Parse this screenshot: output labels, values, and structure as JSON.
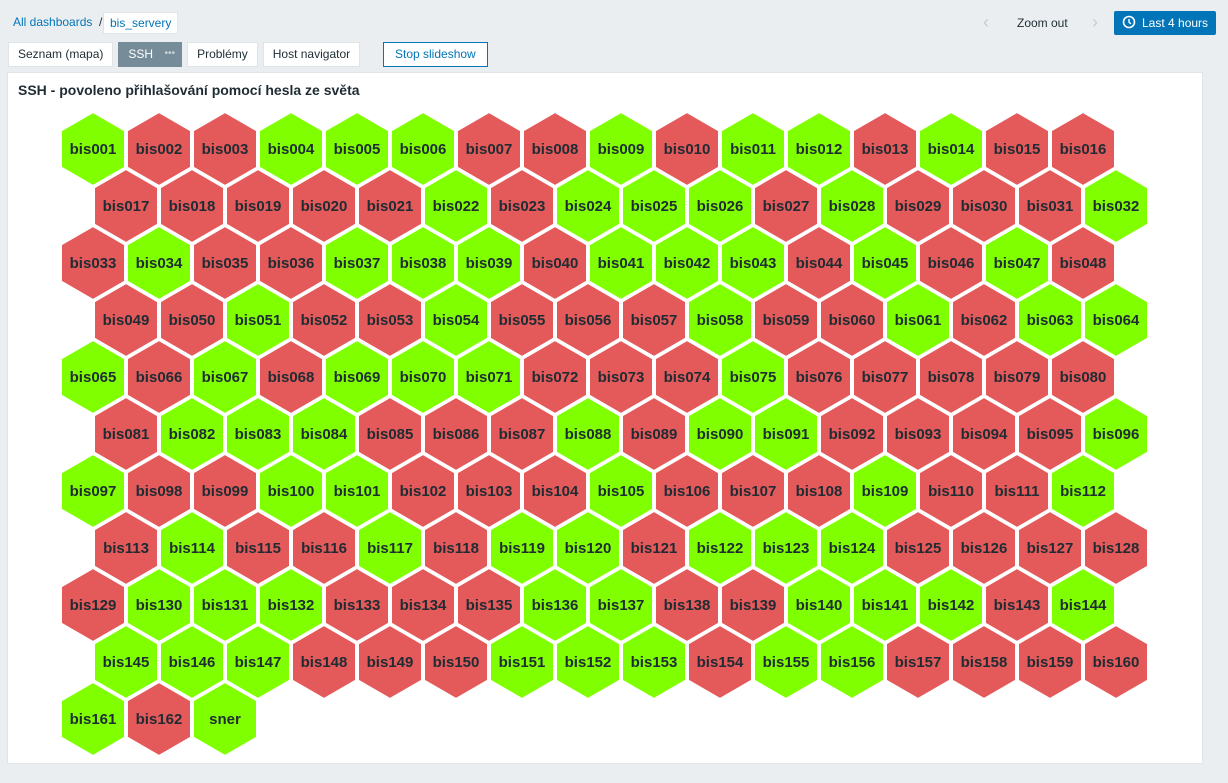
{
  "header": {
    "breadcrumb": [
      "All dashboards",
      "bis_servery"
    ],
    "separator": "/",
    "tabs": [
      "Seznam (mapa)",
      "SSH",
      "Problémy",
      "Host navigator"
    ],
    "stop_button": "Stop slideshow",
    "zoom": "Zoom out",
    "time": "Last 4 hours"
  },
  "widget": {
    "title": "SSH - povoleno přihlašování pomocí hesla ze světa",
    "hosts": [
      {
        "name": "bis001",
        "color": "#80ff00"
      },
      {
        "name": "bis002",
        "color": "#e45959"
      },
      {
        "name": "bis003",
        "color": "#e45959"
      },
      {
        "name": "bis004",
        "color": "#80ff00"
      },
      {
        "name": "bis005",
        "color": "#80ff00"
      },
      {
        "name": "bis006",
        "color": "#80ff00"
      },
      {
        "name": "bis007",
        "color": "#e45959"
      },
      {
        "name": "bis008",
        "color": "#e45959"
      },
      {
        "name": "bis009",
        "color": "#80ff00"
      },
      {
        "name": "bis010",
        "color": "#e45959"
      },
      {
        "name": "bis011",
        "color": "#80ff00"
      },
      {
        "name": "bis012",
        "color": "#80ff00"
      },
      {
        "name": "bis013",
        "color": "#e45959"
      },
      {
        "name": "bis014",
        "color": "#80ff00"
      },
      {
        "name": "bis015",
        "color": "#e45959"
      },
      {
        "name": "bis016",
        "color": "#e45959"
      },
      {
        "name": "bis017",
        "color": "#e45959"
      },
      {
        "name": "bis018",
        "color": "#e45959"
      },
      {
        "name": "bis019",
        "color": "#e45959"
      },
      {
        "name": "bis020",
        "color": "#e45959"
      },
      {
        "name": "bis021",
        "color": "#e45959"
      },
      {
        "name": "bis022",
        "color": "#80ff00"
      },
      {
        "name": "bis023",
        "color": "#e45959"
      },
      {
        "name": "bis024",
        "color": "#80ff00"
      },
      {
        "name": "bis025",
        "color": "#80ff00"
      },
      {
        "name": "bis026",
        "color": "#80ff00"
      },
      {
        "name": "bis027",
        "color": "#e45959"
      },
      {
        "name": "bis028",
        "color": "#80ff00"
      },
      {
        "name": "bis029",
        "color": "#e45959"
      },
      {
        "name": "bis030",
        "color": "#e45959"
      },
      {
        "name": "bis031",
        "color": "#e45959"
      },
      {
        "name": "bis032",
        "color": "#80ff00"
      },
      {
        "name": "bis033",
        "color": "#e45959"
      },
      {
        "name": "bis034",
        "color": "#80ff00"
      },
      {
        "name": "bis035",
        "color": "#e45959"
      },
      {
        "name": "bis036",
        "color": "#e45959"
      },
      {
        "name": "bis037",
        "color": "#80ff00"
      },
      {
        "name": "bis038",
        "color": "#80ff00"
      },
      {
        "name": "bis039",
        "color": "#80ff00"
      },
      {
        "name": "bis040",
        "color": "#e45959"
      },
      {
        "name": "bis041",
        "color": "#80ff00"
      },
      {
        "name": "bis042",
        "color": "#80ff00"
      },
      {
        "name": "bis043",
        "color": "#80ff00"
      },
      {
        "name": "bis044",
        "color": "#e45959"
      },
      {
        "name": "bis045",
        "color": "#80ff00"
      },
      {
        "name": "bis046",
        "color": "#e45959"
      },
      {
        "name": "bis047",
        "color": "#80ff00"
      },
      {
        "name": "bis048",
        "color": "#e45959"
      },
      {
        "name": "bis049",
        "color": "#e45959"
      },
      {
        "name": "bis050",
        "color": "#e45959"
      },
      {
        "name": "bis051",
        "color": "#80ff00"
      },
      {
        "name": "bis052",
        "color": "#e45959"
      },
      {
        "name": "bis053",
        "color": "#e45959"
      },
      {
        "name": "bis054",
        "color": "#80ff00"
      },
      {
        "name": "bis055",
        "color": "#e45959"
      },
      {
        "name": "bis056",
        "color": "#e45959"
      },
      {
        "name": "bis057",
        "color": "#e45959"
      },
      {
        "name": "bis058",
        "color": "#80ff00"
      },
      {
        "name": "bis059",
        "color": "#e45959"
      },
      {
        "name": "bis060",
        "color": "#e45959"
      },
      {
        "name": "bis061",
        "color": "#80ff00"
      },
      {
        "name": "bis062",
        "color": "#e45959"
      },
      {
        "name": "bis063",
        "color": "#80ff00"
      },
      {
        "name": "bis064",
        "color": "#80ff00"
      },
      {
        "name": "bis065",
        "color": "#80ff00"
      },
      {
        "name": "bis066",
        "color": "#e45959"
      },
      {
        "name": "bis067",
        "color": "#80ff00"
      },
      {
        "name": "bis068",
        "color": "#e45959"
      },
      {
        "name": "bis069",
        "color": "#80ff00"
      },
      {
        "name": "bis070",
        "color": "#80ff00"
      },
      {
        "name": "bis071",
        "color": "#80ff00"
      },
      {
        "name": "bis072",
        "color": "#e45959"
      },
      {
        "name": "bis073",
        "color": "#e45959"
      },
      {
        "name": "bis074",
        "color": "#e45959"
      },
      {
        "name": "bis075",
        "color": "#80ff00"
      },
      {
        "name": "bis076",
        "color": "#e45959"
      },
      {
        "name": "bis077",
        "color": "#e45959"
      },
      {
        "name": "bis078",
        "color": "#e45959"
      },
      {
        "name": "bis079",
        "color": "#e45959"
      },
      {
        "name": "bis080",
        "color": "#e45959"
      },
      {
        "name": "bis081",
        "color": "#e45959"
      },
      {
        "name": "bis082",
        "color": "#80ff00"
      },
      {
        "name": "bis083",
        "color": "#80ff00"
      },
      {
        "name": "bis084",
        "color": "#80ff00"
      },
      {
        "name": "bis085",
        "color": "#e45959"
      },
      {
        "name": "bis086",
        "color": "#e45959"
      },
      {
        "name": "bis087",
        "color": "#e45959"
      },
      {
        "name": "bis088",
        "color": "#80ff00"
      },
      {
        "name": "bis089",
        "color": "#e45959"
      },
      {
        "name": "bis090",
        "color": "#80ff00"
      },
      {
        "name": "bis091",
        "color": "#80ff00"
      },
      {
        "name": "bis092",
        "color": "#e45959"
      },
      {
        "name": "bis093",
        "color": "#e45959"
      },
      {
        "name": "bis094",
        "color": "#e45959"
      },
      {
        "name": "bis095",
        "color": "#e45959"
      },
      {
        "name": "bis096",
        "color": "#80ff00"
      },
      {
        "name": "bis097",
        "color": "#80ff00"
      },
      {
        "name": "bis098",
        "color": "#e45959"
      },
      {
        "name": "bis099",
        "color": "#e45959"
      },
      {
        "name": "bis100",
        "color": "#80ff00"
      },
      {
        "name": "bis101",
        "color": "#80ff00"
      },
      {
        "name": "bis102",
        "color": "#e45959"
      },
      {
        "name": "bis103",
        "color": "#e45959"
      },
      {
        "name": "bis104",
        "color": "#e45959"
      },
      {
        "name": "bis105",
        "color": "#80ff00"
      },
      {
        "name": "bis106",
        "color": "#e45959"
      },
      {
        "name": "bis107",
        "color": "#e45959"
      },
      {
        "name": "bis108",
        "color": "#e45959"
      },
      {
        "name": "bis109",
        "color": "#80ff00"
      },
      {
        "name": "bis110",
        "color": "#e45959"
      },
      {
        "name": "bis111",
        "color": "#e45959"
      },
      {
        "name": "bis112",
        "color": "#80ff00"
      },
      {
        "name": "bis113",
        "color": "#e45959"
      },
      {
        "name": "bis114",
        "color": "#80ff00"
      },
      {
        "name": "bis115",
        "color": "#e45959"
      },
      {
        "name": "bis116",
        "color": "#e45959"
      },
      {
        "name": "bis117",
        "color": "#80ff00"
      },
      {
        "name": "bis118",
        "color": "#e45959"
      },
      {
        "name": "bis119",
        "color": "#80ff00"
      },
      {
        "name": "bis120",
        "color": "#80ff00"
      },
      {
        "name": "bis121",
        "color": "#e45959"
      },
      {
        "name": "bis122",
        "color": "#80ff00"
      },
      {
        "name": "bis123",
        "color": "#80ff00"
      },
      {
        "name": "bis124",
        "color": "#80ff00"
      },
      {
        "name": "bis125",
        "color": "#e45959"
      },
      {
        "name": "bis126",
        "color": "#e45959"
      },
      {
        "name": "bis127",
        "color": "#e45959"
      },
      {
        "name": "bis128",
        "color": "#e45959"
      },
      {
        "name": "bis129",
        "color": "#e45959"
      },
      {
        "name": "bis130",
        "color": "#80ff00"
      },
      {
        "name": "bis131",
        "color": "#80ff00"
      },
      {
        "name": "bis132",
        "color": "#80ff00"
      },
      {
        "name": "bis133",
        "color": "#e45959"
      },
      {
        "name": "bis134",
        "color": "#e45959"
      },
      {
        "name": "bis135",
        "color": "#e45959"
      },
      {
        "name": "bis136",
        "color": "#80ff00"
      },
      {
        "name": "bis137",
        "color": "#80ff00"
      },
      {
        "name": "bis138",
        "color": "#e45959"
      },
      {
        "name": "bis139",
        "color": "#e45959"
      },
      {
        "name": "bis140",
        "color": "#80ff00"
      },
      {
        "name": "bis141",
        "color": "#80ff00"
      },
      {
        "name": "bis142",
        "color": "#80ff00"
      },
      {
        "name": "bis143",
        "color": "#e45959"
      },
      {
        "name": "bis144",
        "color": "#80ff00"
      },
      {
        "name": "bis145",
        "color": "#80ff00"
      },
      {
        "name": "bis146",
        "color": "#80ff00"
      },
      {
        "name": "bis147",
        "color": "#80ff00"
      },
      {
        "name": "bis148",
        "color": "#e45959"
      },
      {
        "name": "bis149",
        "color": "#e45959"
      },
      {
        "name": "bis150",
        "color": "#e45959"
      },
      {
        "name": "bis151",
        "color": "#80ff00"
      },
      {
        "name": "bis152",
        "color": "#80ff00"
      },
      {
        "name": "bis153",
        "color": "#80ff00"
      },
      {
        "name": "bis154",
        "color": "#e45959"
      },
      {
        "name": "bis155",
        "color": "#80ff00"
      },
      {
        "name": "bis156",
        "color": "#80ff00"
      },
      {
        "name": "bis157",
        "color": "#e45959"
      },
      {
        "name": "bis158",
        "color": "#e45959"
      },
      {
        "name": "bis159",
        "color": "#e45959"
      },
      {
        "name": "bis160",
        "color": "#e45959"
      },
      {
        "name": "bis161",
        "color": "#80ff00"
      },
      {
        "name": "bis162",
        "color": "#e45959"
      },
      {
        "name": "sner",
        "color": "#80ff00"
      }
    ]
  }
}
